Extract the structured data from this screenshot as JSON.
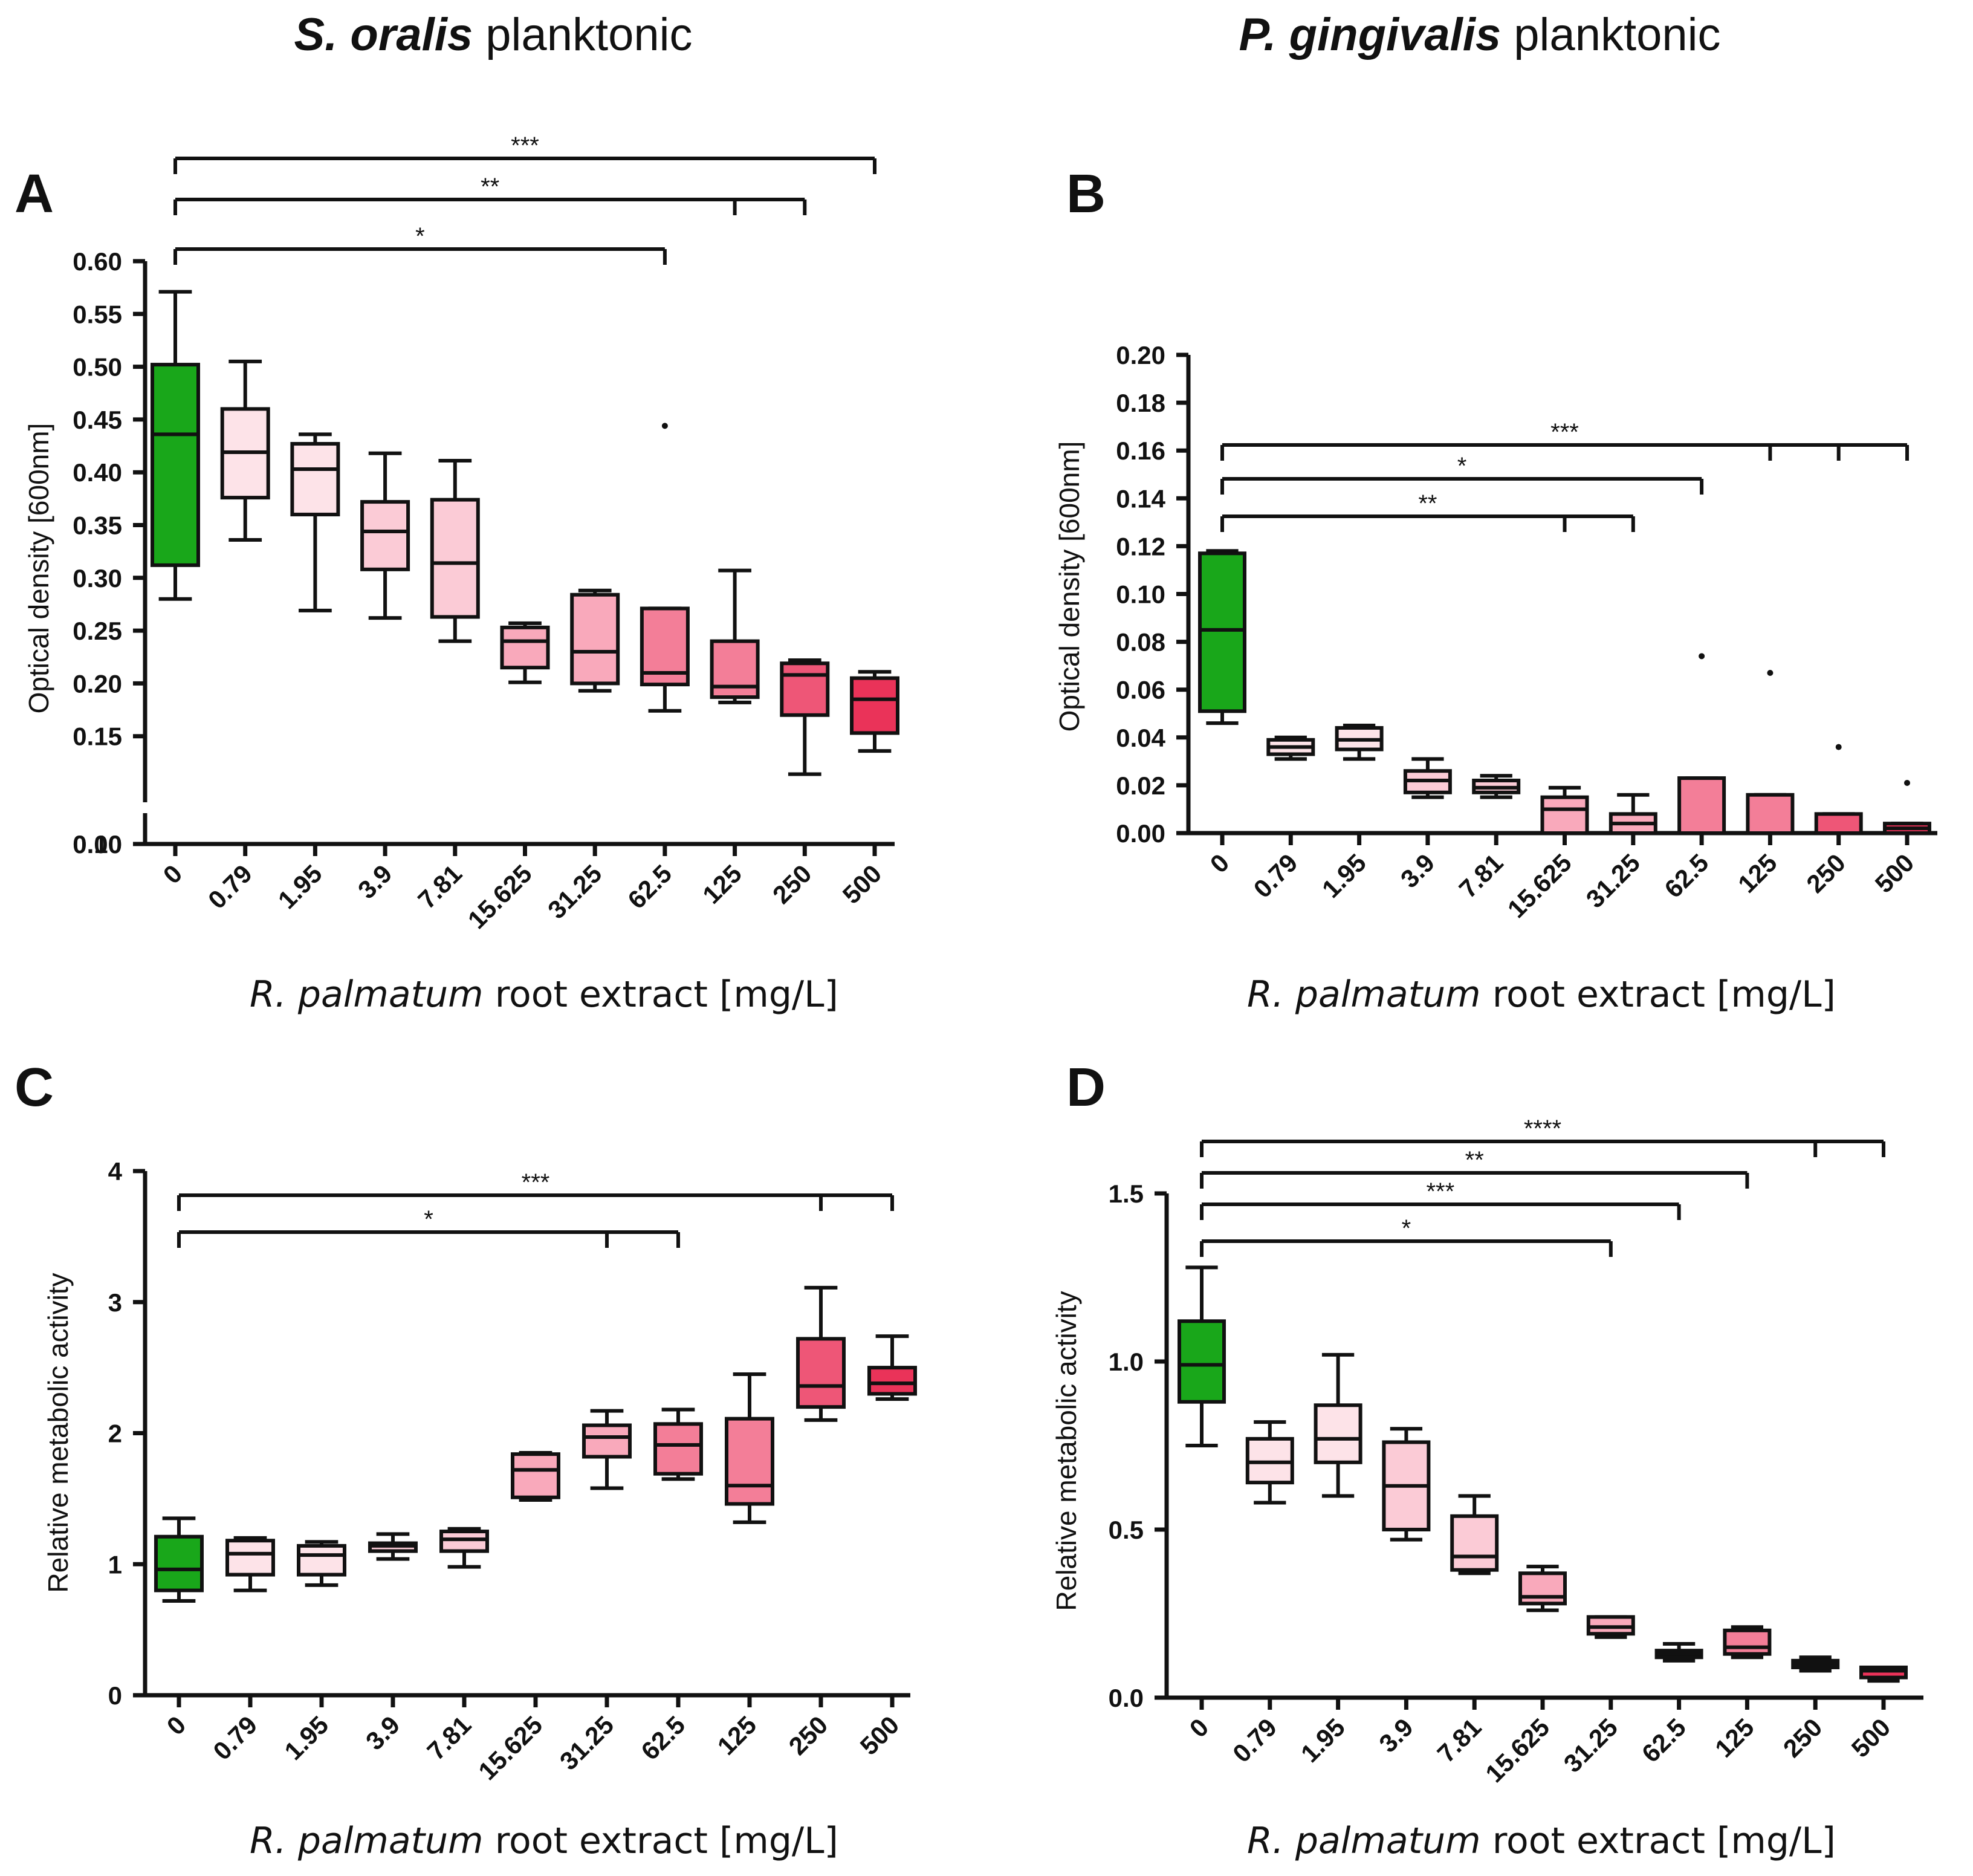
{
  "column_titles": [
    {
      "species": "S. oralis",
      "suffix": "planktonic"
    },
    {
      "species": "P. gingivalis",
      "suffix": "planktonic"
    }
  ],
  "xlabel": {
    "italic": "R. palmatum",
    "rest": "root  extract  [mg/L]"
  },
  "colors": {
    "control": "#19a71a",
    "c1": "#fde3e8",
    "c2": "#fbcbd6",
    "c3": "#f9a9bb",
    "c4": "#f37e98",
    "c5": "#ee5677",
    "c6": "#ea3359",
    "stroke": "#111111"
  },
  "chart_data": [
    {
      "panel": "A",
      "type": "box",
      "ylabel": "Optical density [600nm]",
      "categories": [
        "0",
        "0.79",
        "1.95",
        "3.9",
        "7.81",
        "15.625",
        "31.25",
        "62.5",
        "125",
        "250",
        "500"
      ],
      "yticks": [
        "0.00",
        "0.10",
        "0.15",
        "0.20",
        "0.25",
        "0.30",
        "0.35",
        "0.40",
        "0.45",
        "0.50",
        "0.55",
        "0.60"
      ],
      "ylim": [
        0,
        0.6
      ],
      "axis_break": [
        0,
        0.1
      ],
      "boxes": [
        {
          "min": 0.28,
          "q1": 0.312,
          "median": 0.436,
          "q3": 0.502,
          "max": 0.571
        },
        {
          "min": 0.336,
          "q1": 0.376,
          "median": 0.419,
          "q3": 0.46,
          "max": 0.505
        },
        {
          "min": 0.269,
          "q1": 0.36,
          "median": 0.403,
          "q3": 0.427,
          "max": 0.436
        },
        {
          "min": 0.262,
          "q1": 0.308,
          "median": 0.344,
          "q3": 0.372,
          "max": 0.418
        },
        {
          "min": 0.24,
          "q1": 0.263,
          "median": 0.314,
          "q3": 0.374,
          "max": 0.411
        },
        {
          "min": 0.201,
          "q1": 0.215,
          "median": 0.24,
          "q3": 0.253,
          "max": 0.257
        },
        {
          "min": 0.193,
          "q1": 0.2,
          "median": 0.23,
          "q3": 0.284,
          "max": 0.288
        },
        {
          "min": 0.174,
          "q1": 0.199,
          "median": 0.21,
          "q3": 0.271,
          "max": 0.271,
          "outliers": [
            0.444
          ]
        },
        {
          "min": 0.182,
          "q1": 0.187,
          "median": 0.197,
          "q3": 0.24,
          "max": 0.307
        },
        {
          "min": 0.114,
          "q1": 0.17,
          "median": 0.208,
          "q3": 0.219,
          "max": 0.222
        },
        {
          "min": 0.136,
          "q1": 0.153,
          "median": 0.185,
          "q3": 0.205,
          "max": 0.211
        }
      ],
      "brackets": [
        {
          "label": "***",
          "from": 0,
          "ends": [
            10
          ]
        },
        {
          "label": "**",
          "from": 0,
          "ends": [
            8,
            9
          ]
        },
        {
          "label": "*",
          "from": 0,
          "ends": [
            7
          ]
        }
      ]
    },
    {
      "panel": "B",
      "type": "box",
      "ylabel": "Optical density [600nm]",
      "categories": [
        "0",
        "0.79",
        "1.95",
        "3.9",
        "7.81",
        "15.625",
        "31.25",
        "62.5",
        "125",
        "250",
        "500"
      ],
      "yticks": [
        "0.00",
        "0.02",
        "0.04",
        "0.06",
        "0.08",
        "0.10",
        "0.12",
        "0.14",
        "0.16",
        "0.18",
        "0.20"
      ],
      "ylim": [
        0,
        0.2
      ],
      "boxes": [
        {
          "min": 0.046,
          "q1": 0.051,
          "median": 0.085,
          "q3": 0.117,
          "max": 0.118
        },
        {
          "min": 0.031,
          "q1": 0.033,
          "median": 0.036,
          "q3": 0.039,
          "max": 0.04
        },
        {
          "min": 0.031,
          "q1": 0.035,
          "median": 0.039,
          "q3": 0.044,
          "max": 0.045
        },
        {
          "min": 0.015,
          "q1": 0.017,
          "median": 0.022,
          "q3": 0.026,
          "max": 0.031
        },
        {
          "min": 0.015,
          "q1": 0.017,
          "median": 0.019,
          "q3": 0.022,
          "max": 0.024
        },
        {
          "min": 0.0,
          "q1": 0.0,
          "median": 0.01,
          "q3": 0.015,
          "max": 0.019
        },
        {
          "min": 0.0,
          "q1": 0.0,
          "median": 0.004,
          "q3": 0.008,
          "max": 0.016
        },
        {
          "min": 0.0,
          "q1": 0.0,
          "median": 0.0,
          "q3": 0.023,
          "max": 0.023,
          "outliers": [
            0.074
          ]
        },
        {
          "min": 0.0,
          "q1": 0.0,
          "median": 0.0,
          "q3": 0.016,
          "max": 0.016,
          "outliers": [
            0.067
          ]
        },
        {
          "min": 0.0,
          "q1": 0.0,
          "median": 0.0,
          "q3": 0.008,
          "max": 0.008,
          "outliers": [
            0.036
          ]
        },
        {
          "min": 0.0,
          "q1": 0.0,
          "median": 0.002,
          "q3": 0.004,
          "max": 0.004,
          "outliers": [
            0.021
          ]
        }
      ],
      "brackets": [
        {
          "label": "***",
          "from": 0,
          "ends": [
            8,
            9,
            10
          ]
        },
        {
          "label": "*",
          "from": 0,
          "ends": [
            7
          ]
        },
        {
          "label": "**",
          "from": 0,
          "ends": [
            5,
            6
          ]
        }
      ]
    },
    {
      "panel": "C",
      "type": "box",
      "ylabel": "Relative metabolic activity",
      "categories": [
        "0",
        "0.79",
        "1.95",
        "3.9",
        "7.81",
        "15.625",
        "31.25",
        "62.5",
        "125",
        "250",
        "500"
      ],
      "yticks": [
        "0",
        "1",
        "2",
        "3",
        "4"
      ],
      "ylim": [
        0,
        4
      ],
      "boxes": [
        {
          "min": 0.72,
          "q1": 0.8,
          "median": 0.96,
          "q3": 1.21,
          "max": 1.35
        },
        {
          "min": 0.8,
          "q1": 0.92,
          "median": 1.08,
          "q3": 1.18,
          "max": 1.2
        },
        {
          "min": 0.84,
          "q1": 0.92,
          "median": 1.07,
          "q3": 1.14,
          "max": 1.17
        },
        {
          "min": 1.04,
          "q1": 1.1,
          "median": 1.14,
          "q3": 1.16,
          "max": 1.23
        },
        {
          "min": 0.98,
          "q1": 1.1,
          "median": 1.19,
          "q3": 1.25,
          "max": 1.27
        },
        {
          "min": 1.49,
          "q1": 1.51,
          "median": 1.72,
          "q3": 1.84,
          "max": 1.85
        },
        {
          "min": 1.58,
          "q1": 1.82,
          "median": 1.97,
          "q3": 2.06,
          "max": 2.17
        },
        {
          "min": 1.65,
          "q1": 1.69,
          "median": 1.91,
          "q3": 2.07,
          "max": 2.18
        },
        {
          "min": 1.32,
          "q1": 1.46,
          "median": 1.6,
          "q3": 2.11,
          "max": 2.45
        },
        {
          "min": 2.1,
          "q1": 2.2,
          "median": 2.36,
          "q3": 2.72,
          "max": 3.11
        },
        {
          "min": 2.26,
          "q1": 2.3,
          "median": 2.38,
          "q3": 2.5,
          "max": 2.74
        }
      ],
      "brackets": [
        {
          "label": "***",
          "from": 0,
          "ends": [
            9,
            10
          ]
        },
        {
          "label": "*",
          "from": 0,
          "ends": [
            6,
            7
          ]
        }
      ]
    },
    {
      "panel": "D",
      "type": "box",
      "ylabel": "Relative metabolic activity",
      "categories": [
        "0",
        "0.79",
        "1.95",
        "3.9",
        "7.81",
        "15.625",
        "31.25",
        "62.5",
        "125",
        "250",
        "500"
      ],
      "yticks": [
        "0.0",
        "0.5",
        "1.0",
        "1.5"
      ],
      "ylim": [
        0,
        1.5
      ],
      "boxes": [
        {
          "min": 0.75,
          "q1": 0.88,
          "median": 0.99,
          "q3": 1.12,
          "max": 1.28
        },
        {
          "min": 0.58,
          "q1": 0.64,
          "median": 0.7,
          "q3": 0.77,
          "max": 0.82
        },
        {
          "min": 0.6,
          "q1": 0.7,
          "median": 0.77,
          "q3": 0.87,
          "max": 1.02
        },
        {
          "min": 0.47,
          "q1": 0.5,
          "median": 0.63,
          "q3": 0.76,
          "max": 0.8
        },
        {
          "min": 0.37,
          "q1": 0.38,
          "median": 0.42,
          "q3": 0.54,
          "max": 0.6
        },
        {
          "min": 0.26,
          "q1": 0.28,
          "median": 0.3,
          "q3": 0.37,
          "max": 0.39
        },
        {
          "min": 0.18,
          "q1": 0.19,
          "median": 0.21,
          "q3": 0.24,
          "max": 0.24
        },
        {
          "min": 0.11,
          "q1": 0.12,
          "median": 0.13,
          "q3": 0.14,
          "max": 0.16
        },
        {
          "min": 0.12,
          "q1": 0.13,
          "median": 0.15,
          "q3": 0.2,
          "max": 0.21
        },
        {
          "min": 0.08,
          "q1": 0.09,
          "median": 0.1,
          "q3": 0.11,
          "max": 0.12
        },
        {
          "min": 0.05,
          "q1": 0.06,
          "median": 0.08,
          "q3": 0.09,
          "max": 0.09
        }
      ],
      "brackets": [
        {
          "label": "****",
          "from": 0,
          "ends": [
            9,
            10
          ]
        },
        {
          "label": "**",
          "from": 0,
          "ends": [
            8
          ]
        },
        {
          "label": "***",
          "from": 0,
          "ends": [
            7
          ]
        },
        {
          "label": "*",
          "from": 0,
          "ends": [
            6
          ]
        }
      ]
    }
  ]
}
